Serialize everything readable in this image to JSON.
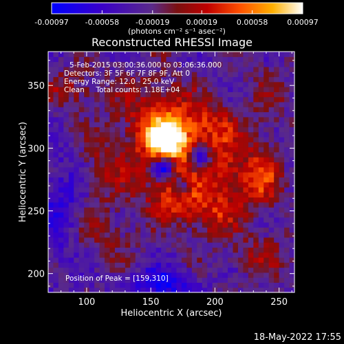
{
  "chart_data": {
    "type": "heatmap",
    "title": "Reconstructed RHESSI Image",
    "xlabel": "Heliocentric X (arcsec)",
    "ylabel": "Heliocentric Y (arcsec)",
    "xlim": [
      70,
      262
    ],
    "ylim": [
      185,
      377
    ],
    "x_ticks": [
      100,
      150,
      200,
      250
    ],
    "y_ticks": [
      200,
      250,
      300,
      350
    ],
    "colorbar": {
      "ticks": [
        -0.00097,
        -0.00058,
        -0.00019,
        0.00019,
        0.00058,
        0.00097
      ],
      "tick_labels": [
        "-0.00097",
        "-0.00058",
        "-0.00019",
        "0.00019",
        "0.00058",
        "0.00097"
      ],
      "units_label": "(photons cm⁻² s⁻¹ asec⁻²)",
      "range": [
        -0.00097,
        0.00097
      ]
    },
    "annotations": {
      "time_range": "5-Feb-2015 03:00:36.000 to 03:06:36.000",
      "detectors": "Detectors: 3F 5F 6F 7F 8F 9F, Att 0",
      "energy_range": "Energy Range: 12.0 - 25.0 keV",
      "method_counts": "Clean     Total counts: 1.18E+04",
      "peak": "Position of Peak = [159,310]"
    },
    "peak": {
      "x": 159,
      "y": 310
    },
    "sources": [
      {
        "x": 163,
        "y": 308,
        "sx": 9,
        "sy": 10,
        "amp": 0.00097
      },
      {
        "x": 175,
        "y": 290,
        "sx": 20,
        "sy": 26,
        "amp": 0.00052
      },
      {
        "x": 150,
        "y": 320,
        "sx": 18,
        "sy": 30,
        "amp": 0.00048
      },
      {
        "x": 190,
        "y": 320,
        "sx": 24,
        "sy": 14,
        "amp": 0.00042
      },
      {
        "x": 210,
        "y": 278,
        "sx": 16,
        "sy": 22,
        "amp": 0.00045
      },
      {
        "x": 238,
        "y": 278,
        "sx": 10,
        "sy": 18,
        "amp": 0.00058
      },
      {
        "x": 170,
        "y": 260,
        "sx": 18,
        "sy": 10,
        "amp": 0.00036
      },
      {
        "x": 195,
        "y": 245,
        "sx": 18,
        "sy": 10,
        "amp": 0.00034
      },
      {
        "x": 160,
        "y": 285,
        "sx": 6,
        "sy": 6,
        "amp": -0.0011
      },
      {
        "x": 188,
        "y": 292,
        "sx": 6,
        "sy": 8,
        "amp": -0.0009
      },
      {
        "x": 175,
        "y": 270,
        "sx": 5,
        "sy": 5,
        "amp": -0.0007
      },
      {
        "x": 90,
        "y": 348,
        "sx": 16,
        "sy": 12,
        "amp": 0.00035
      },
      {
        "x": 115,
        "y": 285,
        "sx": 14,
        "sy": 22,
        "amp": 0.0003
      },
      {
        "x": 110,
        "y": 230,
        "sx": 20,
        "sy": 14,
        "amp": 0.00028
      },
      {
        "x": 235,
        "y": 215,
        "sx": 18,
        "sy": 12,
        "amp": 0.00032
      },
      {
        "x": 245,
        "y": 345,
        "sx": 12,
        "sy": 16,
        "amp": 0.00022
      },
      {
        "x": 160,
        "y": 192,
        "sx": 16,
        "sy": 8,
        "amp": -0.0006
      },
      {
        "x": 80,
        "y": 250,
        "sx": 12,
        "sy": 30,
        "amp": -0.00035
      }
    ],
    "background": -0.0003
  },
  "footer": {
    "timestamp": "18-May-2022 17:55"
  }
}
